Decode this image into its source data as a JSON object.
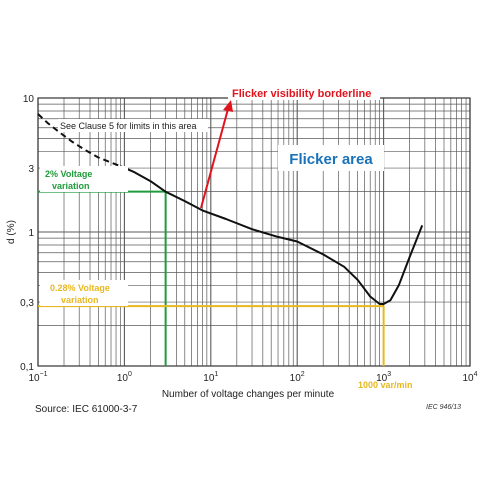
{
  "chart_data": {
    "type": "line",
    "x_scale": "log",
    "y_scale": "log",
    "xlim": [
      0.1,
      10000
    ],
    "ylim": [
      0.1,
      10
    ],
    "xlabel": "Number of voltage changes per minute",
    "ylabel": "d (%)",
    "x_ticks": [
      {
        "value": 0.1,
        "base": "10",
        "exp": "−1"
      },
      {
        "value": 1,
        "base": "10",
        "exp": "0"
      },
      {
        "value": 10,
        "base": "10",
        "exp": "1"
      },
      {
        "value": 100,
        "base": "10",
        "exp": "2"
      },
      {
        "value": 1000,
        "base": "10",
        "exp": "3"
      },
      {
        "value": 10000,
        "base": "10",
        "exp": "4"
      }
    ],
    "y_ticks": [
      {
        "value": 10,
        "label": "10"
      },
      {
        "value": 3,
        "label": "3"
      },
      {
        "value": 1,
        "label": "1"
      },
      {
        "value": 0.3,
        "label": "0,3"
      },
      {
        "value": 0.1,
        "label": "0,1"
      }
    ],
    "grid": true,
    "series": [
      {
        "style": "dashed",
        "x": [
          0.1,
          0.13,
          0.18,
          0.25,
          0.35,
          0.5,
          0.7,
          0.9
        ],
        "y": [
          7.6,
          6.5,
          5.5,
          4.7,
          4.1,
          3.6,
          3.3,
          3.1
        ]
      },
      {
        "style": "solid",
        "x": [
          0.9,
          1.3,
          2,
          3,
          5,
          8,
          15,
          30,
          60,
          100,
          200,
          350,
          500,
          700,
          900,
          1000,
          1200,
          1500,
          2000,
          2800
        ],
        "y": [
          3.1,
          2.8,
          2.4,
          2.0,
          1.7,
          1.45,
          1.25,
          1.05,
          0.92,
          0.85,
          0.68,
          0.55,
          0.44,
          0.33,
          0.29,
          0.29,
          0.31,
          0.4,
          0.65,
          1.12
        ]
      }
    ],
    "reference_lines": [
      {
        "label_id": "two_pct",
        "y": 2.0,
        "x_end": 3,
        "color": "#1f9b3b"
      },
      {
        "label_id": "point28",
        "y": 0.28,
        "x_end": 1000,
        "color": "#e8b820"
      }
    ],
    "annotations": {
      "clause": "See Clause 5 for limits in this area",
      "flicker_area": "Flicker area",
      "borderline": "Flicker visibility borderline",
      "two_pct_line1": "2% Voltage",
      "two_pct_line2": "variation",
      "point28_line1": "0.28% Voltage",
      "point28_line2": "variation",
      "var_min": "1000 var/min",
      "source": "Source: IEC 61000-3-7",
      "iec_ref": "IEC   946/13"
    },
    "colors": {
      "curve": "#111111",
      "grid": "#5a5a5a",
      "green": "#1f9b3b",
      "yellow": "#e8b820",
      "red": "#e1141d",
      "blue": "#1a73b8"
    }
  }
}
